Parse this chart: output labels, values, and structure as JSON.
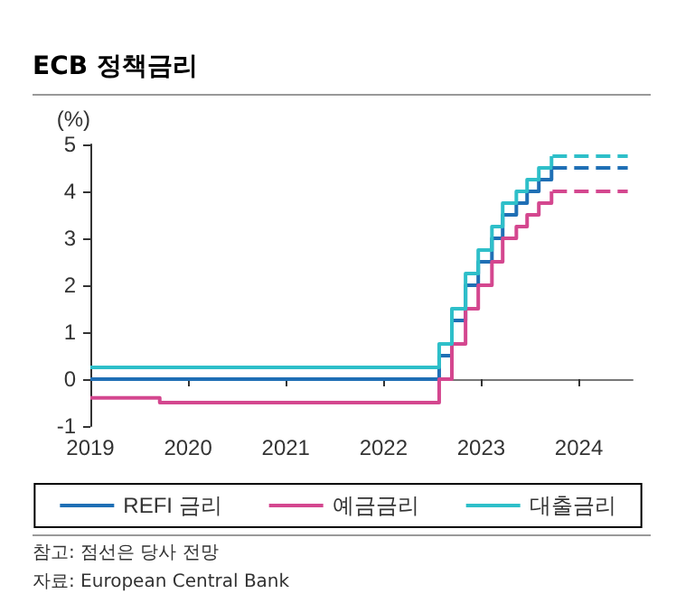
{
  "chart_data": {
    "type": "step",
    "title": "ECB 정책금리",
    "ylabel": "(%)",
    "xlim": [
      2019,
      2024.55
    ],
    "xticks": [
      2019,
      2020,
      2021,
      2022,
      2023,
      2024
    ],
    "ylim": [
      -1,
      5
    ],
    "yticks": [
      -1,
      0,
      1,
      2,
      3,
      4,
      5
    ],
    "grid": false,
    "legend": "bottom",
    "marker": "none",
    "line_style": "solid",
    "series": [
      {
        "name": "REFI 금리",
        "color": "#1f6fb5",
        "x": [
          2019,
          2022.57,
          2022.7,
          2022.84,
          2022.97,
          2023.11,
          2023.22,
          2023.36,
          2023.47,
          2023.59,
          2023.72,
          2023.73
        ],
        "values": [
          0,
          0.5,
          1.25,
          2,
          2.5,
          3,
          3.5,
          3.75,
          4,
          4.25,
          4.5,
          4.5
        ]
      },
      {
        "name": "예금금리",
        "color": "#d4478f",
        "x": [
          2019,
          2019.71,
          2022.57,
          2022.7,
          2022.84,
          2022.97,
          2023.11,
          2023.22,
          2023.36,
          2023.47,
          2023.59,
          2023.72,
          2023.73
        ],
        "values": [
          -0.4,
          -0.5,
          0,
          0.75,
          1.5,
          2,
          2.5,
          3,
          3.25,
          3.5,
          3.75,
          4,
          4
        ]
      },
      {
        "name": "대출금리",
        "color": "#2ebfc9",
        "x": [
          2019,
          2022.57,
          2022.7,
          2022.84,
          2022.97,
          2023.11,
          2023.22,
          2023.36,
          2023.47,
          2023.59,
          2023.72,
          2023.73
        ],
        "values": [
          0.25,
          0.75,
          1.5,
          2.25,
          2.75,
          3.25,
          3.75,
          4,
          4.25,
          4.5,
          4.75,
          4.75
        ]
      },
      {
        "type": "line",
        "line_style": "dashed",
        "color": "#1f6fb5",
        "x": [
          2023.73,
          2024.5
        ],
        "values": [
          4.5,
          4.5
        ]
      },
      {
        "type": "line",
        "line_style": "dashed",
        "color": "#d4478f",
        "x": [
          2023.73,
          2024.5
        ],
        "values": [
          4,
          4
        ]
      },
      {
        "type": "line",
        "line_style": "dashed",
        "color": "#2ebfc9",
        "x": [
          2023.73,
          2024.5
        ],
        "values": [
          4.75,
          4.75
        ]
      }
    ],
    "annotations": [
      "참고: 점선은 당사 전망",
      "자료: European Central Bank"
    ]
  }
}
